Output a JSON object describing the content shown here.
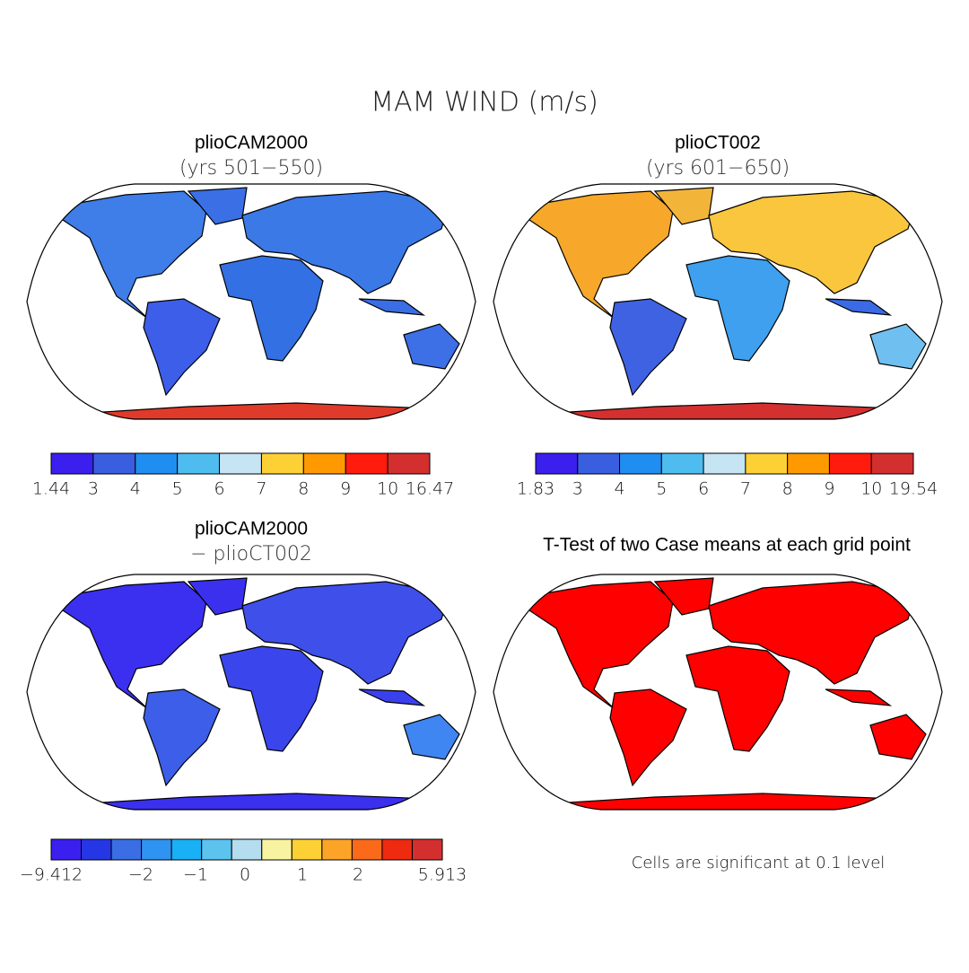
{
  "title": "MAM WIND (m/s)",
  "panels": [
    {
      "title": "plioCAM2000",
      "subtitle": "(yrs 501−550)",
      "map_colors": [
        "#3f7de8",
        "#3a6fe6",
        "#3d5ee8",
        "#3b79e6",
        "#3370e4",
        "#3d6fe6",
        "#3a6ee5",
        "#e03a2a"
      ],
      "colorbar": {
        "colors": [
          "#3b1fee",
          "#3a5ee0",
          "#1f8ef0",
          "#4fbcef",
          "#c5e4f4",
          "#fdd135",
          "#fe9a00",
          "#ff1c0f",
          "#d32f2f"
        ],
        "labels": [
          "1.44",
          "3",
          "4",
          "5",
          "6",
          "7",
          "8",
          "9",
          "10",
          "16.47"
        ]
      }
    },
    {
      "title": "plioCT002",
      "subtitle": "(yrs 601−650)",
      "map_colors": [
        "#f7a82a",
        "#f2b53a",
        "#3e62e2",
        "#f9c63d",
        "#3ea0ee",
        "#6fc0f0",
        "#3a6ae6",
        "#d43030"
      ],
      "colorbar": {
        "colors": [
          "#3b1fee",
          "#3a5ee0",
          "#1f8ef0",
          "#4fbcef",
          "#c5e4f4",
          "#fdd135",
          "#fe9a00",
          "#ff1c0f",
          "#d32f2f"
        ],
        "labels": [
          "1.83",
          "3",
          "4",
          "5",
          "6",
          "7",
          "8",
          "9",
          "10",
          "19.54"
        ]
      }
    },
    {
      "title": "plioCAM2000",
      "subtitle": "− plioCT002",
      "map_colors": [
        "#3b2ff0",
        "#3a30ee",
        "#3d5ee8",
        "#3f4fea",
        "#3b45ec",
        "#3f86f2",
        "#3b40ee",
        "#3b30ee"
      ],
      "colorbar": {
        "colors": [
          "#3b1fee",
          "#2536e4",
          "#3a6ee5",
          "#2f93f2",
          "#1ab0f5",
          "#5cc2ee",
          "#b4ddf0",
          "#f8f3a0",
          "#fdd135",
          "#fca428",
          "#fa6a1a",
          "#ee2a10",
          "#d32f2f"
        ],
        "labels": [
          "−9.412",
          "−2",
          "−1",
          "0",
          "1",
          "2",
          "5.913"
        ]
      }
    },
    {
      "title": "T-Test of two Case means at each grid point",
      "map_colors": [
        "#ff0000",
        "#ff0000",
        "#ff0000",
        "#ff0000",
        "#ff0000",
        "#ff0000",
        "#ff0000",
        "#ff0000"
      ],
      "note": "Cells are significant at 0.1 level"
    }
  ]
}
